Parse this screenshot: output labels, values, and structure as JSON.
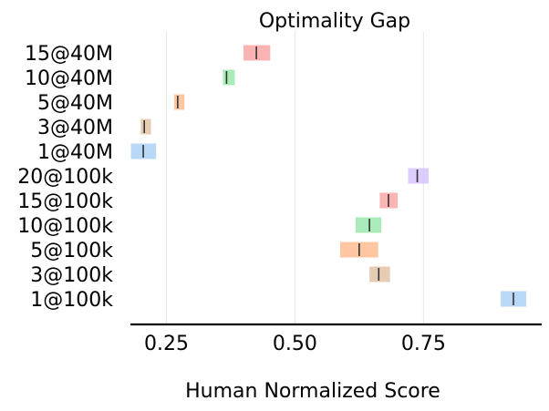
{
  "chart_data": {
    "type": "bar",
    "title": "Optimality Gap",
    "xlabel": "Human Normalized Score",
    "ylabel": "",
    "xlim": [
      0.18,
      0.98
    ],
    "xticks": [
      0.25,
      0.5,
      0.75
    ],
    "xtick_labels": [
      "0.25",
      "0.50",
      "0.75"
    ],
    "grid": true,
    "categories": [
      "15@40M",
      "10@40M",
      "5@40M",
      "3@40M",
      "1@40M",
      "20@100k",
      "15@100k",
      "10@100k",
      "5@100k",
      "3@100k",
      "1@100k"
    ],
    "intervals": [
      {
        "category": "15@40M",
        "low": 0.4,
        "median": 0.425,
        "high": 0.452,
        "color": "#f99b9b"
      },
      {
        "category": "10@40M",
        "low": 0.36,
        "median": 0.367,
        "high": 0.383,
        "color": "#8de5a1"
      },
      {
        "category": "5@40M",
        "low": 0.265,
        "median": 0.272,
        "high": 0.285,
        "color": "#ffb482"
      },
      {
        "category": "3@40M",
        "low": 0.2,
        "median": 0.207,
        "high": 0.22,
        "color": "#debb9b"
      },
      {
        "category": "1@40M",
        "low": 0.181,
        "median": 0.205,
        "high": 0.23,
        "color": "#a1c9f4"
      },
      {
        "category": "20@100k",
        "low": 0.72,
        "median": 0.738,
        "high": 0.76,
        "color": "#d0bbff"
      },
      {
        "category": "15@100k",
        "low": 0.665,
        "median": 0.682,
        "high": 0.7,
        "color": "#f99b9b"
      },
      {
        "category": "10@100k",
        "low": 0.618,
        "median": 0.645,
        "high": 0.668,
        "color": "#8de5a1"
      },
      {
        "category": "5@100k",
        "low": 0.588,
        "median": 0.625,
        "high": 0.662,
        "color": "#ffb482"
      },
      {
        "category": "3@100k",
        "low": 0.645,
        "median": 0.663,
        "high": 0.685,
        "color": "#debb9b"
      },
      {
        "category": "1@100k",
        "low": 0.9,
        "median": 0.925,
        "high": 0.95,
        "color": "#a1c9f4"
      }
    ]
  }
}
